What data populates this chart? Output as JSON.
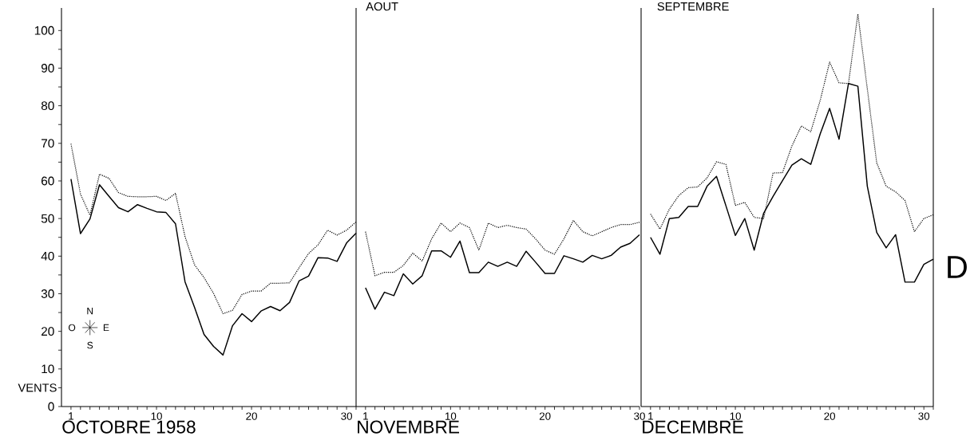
{
  "chart_data": [
    {
      "type": "line",
      "xlabel": "OCTOBRE 1958",
      "annotations": [
        "VENTS",
        "N",
        "E",
        "S",
        "O"
      ],
      "x": [
        1,
        2,
        3,
        4,
        5,
        6,
        7,
        8,
        9,
        10,
        11,
        12,
        13,
        14,
        15,
        16,
        17,
        18,
        19,
        20,
        21,
        22,
        23,
        24,
        25,
        26,
        27,
        28,
        29,
        30,
        31
      ],
      "series": [
        {
          "color": "#000000",
          "line_style": "solid",
          "values": [
            60.5,
            46,
            49.9,
            59,
            55.9,
            52.9,
            51.8,
            53.7,
            52.7,
            51.8,
            51.6,
            48.6,
            33.2,
            26.4,
            19.2,
            16,
            13.7,
            21.5,
            24.7,
            22.6,
            25.4,
            26.6,
            25.5,
            27.7,
            33.4,
            34.7,
            39.6,
            39.5,
            38.6,
            43.5,
            46.1
          ]
        },
        {
          "color": "#000000",
          "line_style": "dotted",
          "values": [
            69.9,
            56.5,
            50.9,
            61.8,
            60.7,
            56.9,
            55.9,
            55.8,
            55.8,
            55.9,
            54.8,
            56.7,
            45.2,
            37.7,
            34.3,
            30.1,
            24.7,
            25.6,
            29.8,
            30.7,
            30.7,
            32.8,
            32.8,
            32.9,
            36.9,
            40.7,
            43,
            46.9,
            45.6,
            46.9,
            49.1
          ]
        }
      ],
      "xlim": [
        0,
        31
      ],
      "ylim": [
        0,
        106
      ],
      "xticks": [
        1,
        {
          "value": 2,
          "label": null
        },
        {
          "value": 3,
          "label": null
        },
        {
          "value": 4,
          "label": null
        },
        {
          "value": 5,
          "label": null
        },
        {
          "value": 6,
          "label": null
        },
        {
          "value": 7,
          "label": null
        },
        {
          "value": 8,
          "label": null
        },
        {
          "value": 9,
          "label": null
        },
        10,
        {
          "value": 11,
          "label": null
        },
        {
          "value": 12,
          "label": null
        },
        {
          "value": 13,
          "label": null
        },
        {
          "value": 14,
          "label": null
        },
        {
          "value": 15,
          "label": null
        },
        {
          "value": 16,
          "label": null
        },
        {
          "value": 17,
          "label": null
        },
        {
          "value": 18,
          "label": null
        },
        {
          "value": 19,
          "label": null
        },
        20,
        {
          "value": 21,
          "label": null
        },
        {
          "value": 22,
          "label": null
        },
        {
          "value": 23,
          "label": null
        },
        {
          "value": 24,
          "label": null
        },
        {
          "value": 25,
          "label": null
        },
        {
          "value": 26,
          "label": null
        },
        {
          "value": 27,
          "label": null
        },
        {
          "value": 28,
          "label": null
        },
        {
          "value": 29,
          "label": null
        },
        30,
        {
          "value": 31,
          "label": null
        }
      ],
      "yticks": [
        0,
        {
          "value": 5,
          "label": null
        },
        10,
        {
          "value": 15,
          "label": null
        },
        20,
        {
          "value": 25,
          "label": null
        },
        30,
        {
          "value": 35,
          "label": null
        },
        40,
        {
          "value": 45,
          "label": null
        },
        50,
        {
          "value": 55,
          "label": null
        },
        60,
        {
          "value": 65,
          "label": null
        },
        70,
        {
          "value": 75,
          "label": null
        },
        80,
        {
          "value": 85,
          "label": null
        },
        90,
        {
          "value": 95,
          "label": null
        },
        100
      ]
    },
    {
      "type": "line",
      "xlabel": "NOVEMBRE",
      "annotations": [
        "AOUT"
      ],
      "tick_labels": "x",
      "x": [
        1,
        2,
        3,
        4,
        5,
        6,
        7,
        8,
        9,
        10,
        11,
        12,
        13,
        14,
        15,
        16,
        17,
        18,
        19,
        20,
        21,
        22,
        23,
        24,
        25,
        26,
        27,
        28,
        29,
        30
      ],
      "series": [
        {
          "color": "#000000",
          "line_style": "solid",
          "values": [
            31.6,
            25.9,
            30.4,
            29.5,
            35.3,
            32.6,
            34.8,
            41.4,
            41.4,
            39.7,
            44,
            35.6,
            35.6,
            38.4,
            37.3,
            38.4,
            37.3,
            41.3,
            38.4,
            35.4,
            35.4,
            40.1,
            39.3,
            38.4,
            40.2,
            39.3,
            40.2,
            42.4,
            43.4,
            45.7
          ]
        },
        {
          "color": "#000000",
          "line_style": "dotted",
          "values": [
            46.5,
            34.8,
            35.7,
            35.7,
            37.5,
            40.8,
            38.7,
            44.6,
            48.8,
            46.5,
            48.8,
            47.6,
            41.6,
            48.8,
            47.6,
            48.2,
            47.6,
            47.2,
            44.6,
            41.6,
            40.5,
            44.6,
            49.5,
            46.5,
            45.4,
            46.5,
            47.6,
            48.4,
            48.4,
            49
          ]
        }
      ],
      "xlim": [
        0,
        30
      ],
      "ylim": [
        0,
        106
      ],
      "xticks": [
        1,
        {
          "value": 2,
          "label": null
        },
        {
          "value": 3,
          "label": null
        },
        {
          "value": 4,
          "label": null
        },
        {
          "value": 5,
          "label": null
        },
        {
          "value": 6,
          "label": null
        },
        {
          "value": 7,
          "label": null
        },
        {
          "value": 8,
          "label": null
        },
        {
          "value": 9,
          "label": null
        },
        10,
        {
          "value": 11,
          "label": null
        },
        {
          "value": 12,
          "label": null
        },
        {
          "value": 13,
          "label": null
        },
        {
          "value": 14,
          "label": null
        },
        {
          "value": 15,
          "label": null
        },
        {
          "value": 16,
          "label": null
        },
        {
          "value": 17,
          "label": null
        },
        {
          "value": 18,
          "label": null
        },
        {
          "value": 19,
          "label": null
        },
        20,
        {
          "value": 21,
          "label": null
        },
        {
          "value": 22,
          "label": null
        },
        {
          "value": 23,
          "label": null
        },
        {
          "value": 24,
          "label": null
        },
        {
          "value": 25,
          "label": null
        },
        {
          "value": 26,
          "label": null
        },
        {
          "value": 27,
          "label": null
        },
        {
          "value": 28,
          "label": null
        },
        {
          "value": 29,
          "label": null
        },
        30
      ]
    },
    {
      "type": "line",
      "xlabel": "DECEMBRE",
      "annotations": [
        "SEPTEMBRE",
        "D"
      ],
      "tick_labels": "x",
      "x": [
        1,
        2,
        3,
        4,
        5,
        6,
        7,
        8,
        9,
        10,
        11,
        12,
        13,
        14,
        15,
        16,
        17,
        18,
        19,
        20,
        21,
        22,
        23,
        24,
        25,
        26,
        27,
        28,
        29,
        30,
        31
      ],
      "series": [
        {
          "color": "#000000",
          "line_style": "solid",
          "values": [
            45,
            40.5,
            50,
            50.3,
            53.2,
            53.2,
            58.6,
            61.2,
            53.4,
            45.5,
            50,
            41.6,
            51.4,
            55.9,
            60.1,
            64.2,
            65.9,
            64.4,
            72.5,
            79.3,
            71.1,
            85.9,
            85.2,
            58.6,
            46.3,
            42.2,
            45.7,
            33.1,
            33.1,
            37.8,
            39.2
          ]
        },
        {
          "color": "#000000",
          "line_style": "dotted",
          "values": [
            51.2,
            47.2,
            52.5,
            56.1,
            58.2,
            58.4,
            60.8,
            65.1,
            64.4,
            53.5,
            54.3,
            50.3,
            50,
            62.1,
            62.2,
            69.3,
            74.6,
            73.1,
            81.4,
            91.6,
            86.1,
            85.9,
            104.4,
            84.5,
            64.8,
            58.6,
            57.1,
            54.8,
            46.5,
            50,
            51
          ]
        }
      ],
      "xlim": [
        0,
        31
      ],
      "ylim": [
        0,
        106
      ],
      "xticks": [
        1,
        {
          "value": 2,
          "label": null
        },
        {
          "value": 3,
          "label": null
        },
        {
          "value": 4,
          "label": null
        },
        {
          "value": 5,
          "label": null
        },
        {
          "value": 6,
          "label": null
        },
        {
          "value": 7,
          "label": null
        },
        {
          "value": 8,
          "label": null
        },
        {
          "value": 9,
          "label": null
        },
        10,
        {
          "value": 11,
          "label": null
        },
        {
          "value": 12,
          "label": null
        },
        {
          "value": 13,
          "label": null
        },
        {
          "value": 14,
          "label": null
        },
        {
          "value": 15,
          "label": null
        },
        {
          "value": 16,
          "label": null
        },
        {
          "value": 17,
          "label": null
        },
        {
          "value": 18,
          "label": null
        },
        {
          "value": 19,
          "label": null
        },
        20,
        {
          "value": 21,
          "label": null
        },
        {
          "value": 22,
          "label": null
        },
        {
          "value": 23,
          "label": null
        },
        {
          "value": 24,
          "label": null
        },
        {
          "value": 25,
          "label": null
        },
        {
          "value": 26,
          "label": null
        },
        {
          "value": 27,
          "label": null
        },
        {
          "value": 28,
          "label": null
        },
        {
          "value": 29,
          "label": null
        },
        30,
        {
          "value": 31,
          "label": null
        }
      ]
    }
  ]
}
